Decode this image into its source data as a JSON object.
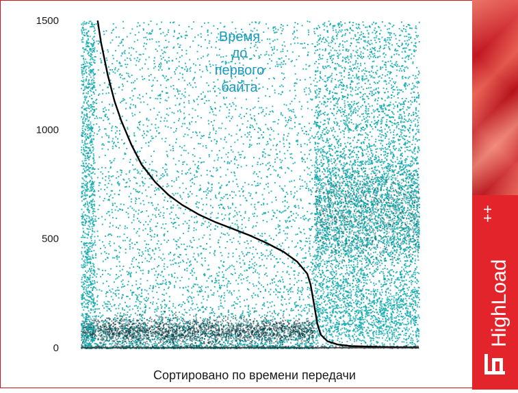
{
  "chart_data": {
    "type": "scatter",
    "title": "",
    "xlabel": "Сортировано по времени передачи",
    "ylabel": "",
    "ylim": [
      0,
      1500
    ],
    "yticks": [
      0,
      500,
      1000,
      1500
    ],
    "annotation": [
      "Время",
      "до",
      "первого",
      "байта"
    ],
    "point_color": "#0fa9ad",
    "dense_color": "#0d3b40",
    "curve_color": "#000000",
    "x_range": [
      0,
      1
    ],
    "transition_x": 0.69,
    "curve": {
      "x": [
        0.05,
        0.06,
        0.08,
        0.1,
        0.12,
        0.15,
        0.18,
        0.22,
        0.26,
        0.3,
        0.35,
        0.4,
        0.45,
        0.5,
        0.55,
        0.6,
        0.64,
        0.67,
        0.68,
        0.69,
        0.7,
        0.71,
        0.73,
        0.76,
        0.8,
        0.9,
        1.0
      ],
      "y": [
        1500,
        1400,
        1250,
        1130,
        1040,
        930,
        840,
        760,
        700,
        655,
        610,
        575,
        545,
        515,
        480,
        440,
        395,
        340,
        290,
        200,
        110,
        60,
        30,
        15,
        8,
        3,
        1
      ]
    },
    "clusters": [
      {
        "name": "",
        "x": [
          0.0,
          0.69
        ],
        "y_center": 80,
        "y_spread": 50,
        "density": "high"
      },
      {
        "name": "",
        "x": [
          0.69,
          1.0
        ],
        "y_center": 650,
        "y_spread": 200,
        "density": "high"
      },
      {
        "name": "",
        "x": [
          0.69,
          1.0
        ],
        "y_center": 150,
        "y_spread": 120,
        "density": "medium"
      }
    ]
  },
  "brand": {
    "name": "HighLoad",
    "suffix": "++"
  }
}
